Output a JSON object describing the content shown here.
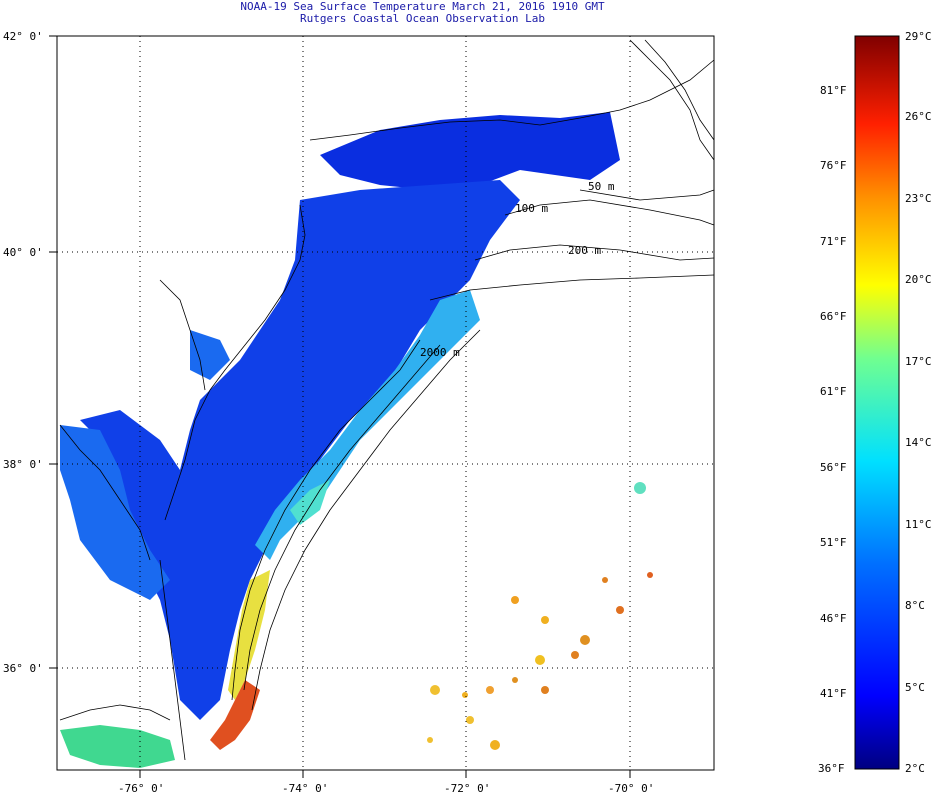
{
  "title": {
    "line1": "NOAA-19 Sea Surface Temperature March 21, 2016 1910 GMT",
    "line2": "Rutgers Coastal Ocean Observation Lab"
  },
  "lat_labels": [
    "42° 0'",
    "40° 0'",
    "38° 0'",
    "36° 0'"
  ],
  "lon_labels": [
    "-76° 0'",
    "-74° 0'",
    "-72° 0'",
    "-70° 0'"
  ],
  "isobath_labels": [
    "50 m",
    "100 m",
    "200 m",
    "2000 m"
  ],
  "colorbar": {
    "celsius_labels": [
      "29°C",
      "26°C",
      "23°C",
      "20°C",
      "17°C",
      "14°C",
      "11°C",
      "8°C",
      "5°C",
      "2°C"
    ],
    "fahrenheit_labels": [
      "81°F",
      "76°F",
      "71°F",
      "66°F",
      "61°F",
      "56°F",
      "51°F",
      "46°F",
      "41°F",
      "36°F"
    ],
    "min_c": 2,
    "max_c": 29
  },
  "colors": {
    "title_text": "#1a1aa8",
    "cold": "#0a0aa8",
    "warm": "#e03010"
  }
}
